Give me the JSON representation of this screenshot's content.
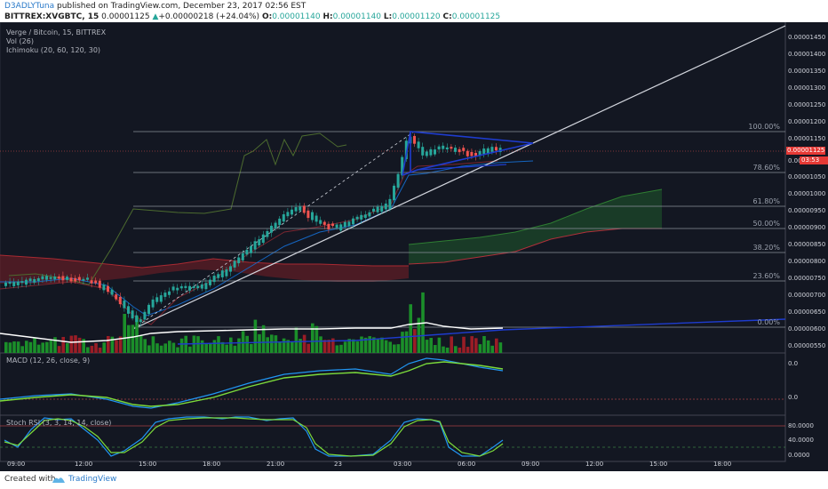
{
  "header": {
    "author": "D3ADLYTuna",
    "published": " published on TradingView.com, December 23, 2017 02:56 EST",
    "symbol": "BITTREX:XVGBTC, 15",
    "last": "0.00001125",
    "change": "+0.00000218 (+24.04%)",
    "o_label": "O:",
    "o_value": "0.00001140",
    "h_label": "H:",
    "h_value": "0.00001140",
    "l_label": "L:",
    "l_value": "0.00001120",
    "c_label": "C:",
    "c_value": "0.00001125"
  },
  "legend": {
    "title": "Verge / Bitcoin, 15, BITTREX",
    "vol": "Vol (26)",
    "ichimoku": "Ichimoku (20, 60, 120, 30)"
  },
  "fib_levels": [
    {
      "label": "100.00%"
    },
    {
      "label": "78.60%"
    },
    {
      "label": "61.80%"
    },
    {
      "label": "50.00%"
    },
    {
      "label": "38.20%"
    },
    {
      "label": "23.60%"
    },
    {
      "label": "0.00%"
    }
  ],
  "price_axis": [
    "0.00001450",
    "0.00001400",
    "0.00001350",
    "0.00001300",
    "0.00001250",
    "0.00001200",
    "0.00001150",
    "0.00001100",
    "0.00001050",
    "0.00001000",
    "0.00000950",
    "0.00000900",
    "0.00000850",
    "0.00000800",
    "0.00000750",
    "0.00000700",
    "0.00000650",
    "0.00000600",
    "0.00000550"
  ],
  "current_price": "0.00001125",
  "countdown": "03:53",
  "macd": {
    "label": "MACD (12, 26, close, 9)",
    "axis": [
      "0.0",
      "0.0"
    ]
  },
  "stoch_rsi": {
    "label": "Stoch RSI (3, 3, 14, 14, close)",
    "axis": [
      "80.0000",
      "40.0000",
      "0.0000"
    ]
  },
  "time_axis": [
    "09:00",
    "12:00",
    "15:00",
    "18:00",
    "21:00",
    "23",
    "03:00",
    "06:00",
    "09:00",
    "12:00",
    "15:00",
    "18:00"
  ],
  "footer": {
    "created_with": "Created with",
    "brand": "TradingView"
  },
  "colors": {
    "background": "#131722",
    "up": "#26a69a",
    "down": "#ef5350",
    "price_label": "#e53935",
    "pennant": "#1e3ccf"
  }
}
